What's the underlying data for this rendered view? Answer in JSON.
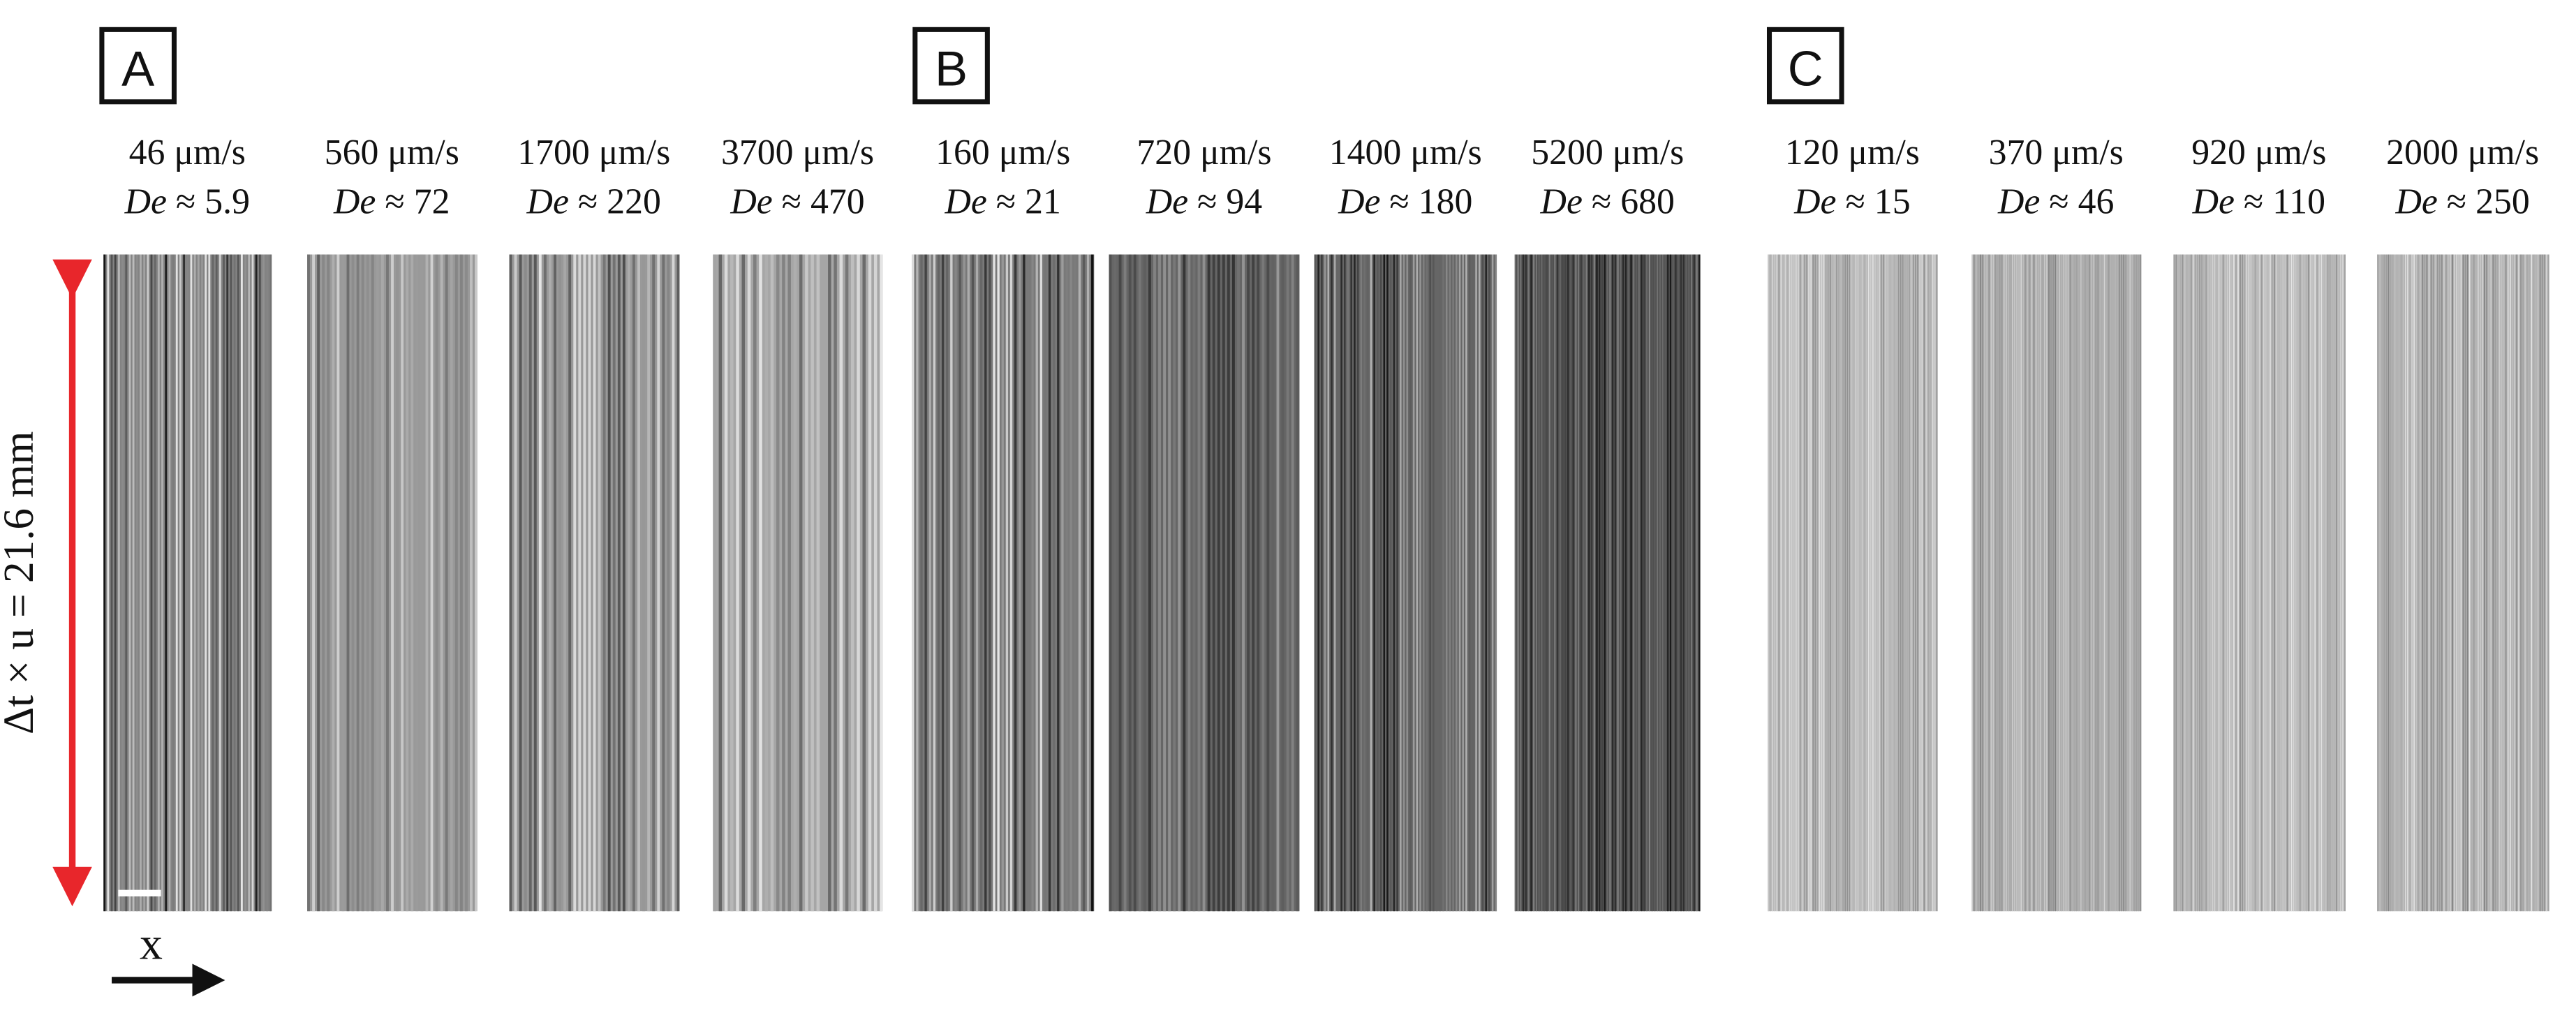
{
  "de_symbol": "De",
  "axis_label": "Δt × u = 21.6 mm",
  "x_label": "x",
  "panels": [
    {
      "label": "A",
      "columns": [
        {
          "speed": "46 μm/s",
          "de": "≈ 5.9"
        },
        {
          "speed": "560 μm/s",
          "de": "≈ 72"
        },
        {
          "speed": "1700 μm/s",
          "de": "≈ 220"
        },
        {
          "speed": "3700 μm/s",
          "de": "≈ 470"
        }
      ]
    },
    {
      "label": "B",
      "columns": [
        {
          "speed": "160 μm/s",
          "de": "≈ 21"
        },
        {
          "speed": "720 μm/s",
          "de": "≈ 94"
        },
        {
          "speed": "1400 μm/s",
          "de": "≈ 180"
        },
        {
          "speed": "5200 μm/s",
          "de": "≈ 680"
        }
      ]
    },
    {
      "label": "C",
      "columns": [
        {
          "speed": "120 μm/s",
          "de": "≈ 15"
        },
        {
          "speed": "370 μm/s",
          "de": "≈ 46"
        },
        {
          "speed": "920 μm/s",
          "de": "≈ 110"
        },
        {
          "speed": "2000 μm/s",
          "de": "≈ 250"
        }
      ]
    }
  ]
}
